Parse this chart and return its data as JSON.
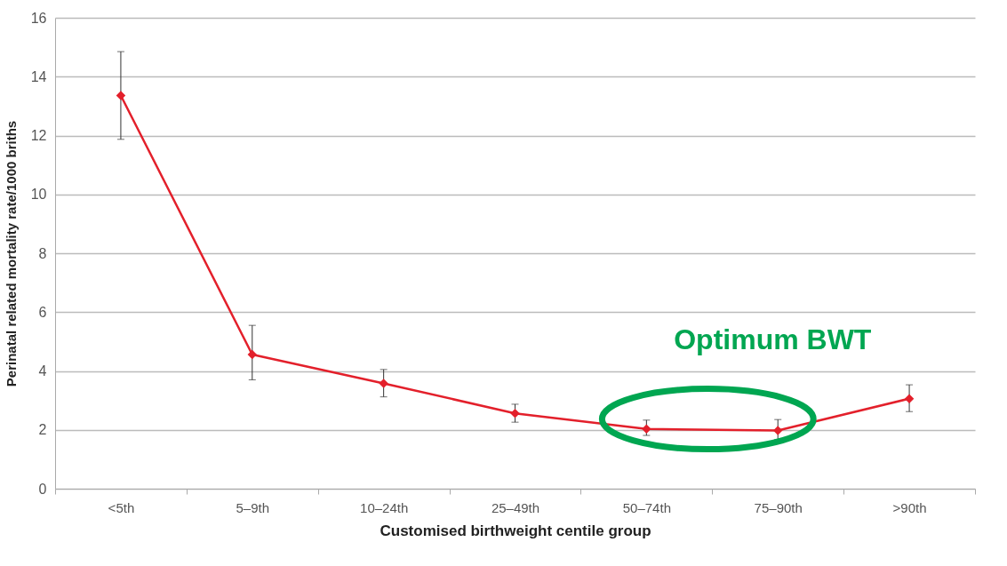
{
  "chart_data": {
    "type": "line",
    "xlabel": "Customised birthweight centile group",
    "ylabel": "Perinatal related mortality rate/1000 briths",
    "categories": [
      "<5th",
      "5–9th",
      "10–24th",
      "25–49th",
      "50–74th",
      "75–90th",
      ">90th"
    ],
    "values": [
      13.36,
      4.56,
      3.58,
      2.56,
      2.03,
      1.98,
      3.06
    ],
    "errors": [
      [
        11.87,
        14.85
      ],
      [
        3.7,
        5.55
      ],
      [
        3.12,
        4.05
      ],
      [
        2.26,
        2.87
      ],
      [
        1.81,
        2.33
      ],
      [
        1.67,
        2.35
      ],
      [
        2.62,
        3.53
      ]
    ],
    "color": "#e3202b",
    "marker": "diamond",
    "line_style": "solid",
    "ylim": [
      0,
      16
    ],
    "yticks": [
      0,
      2,
      4,
      6,
      8,
      10,
      12,
      14,
      16
    ],
    "grid": "y",
    "annotations": [
      "Optimum BWT"
    ]
  }
}
